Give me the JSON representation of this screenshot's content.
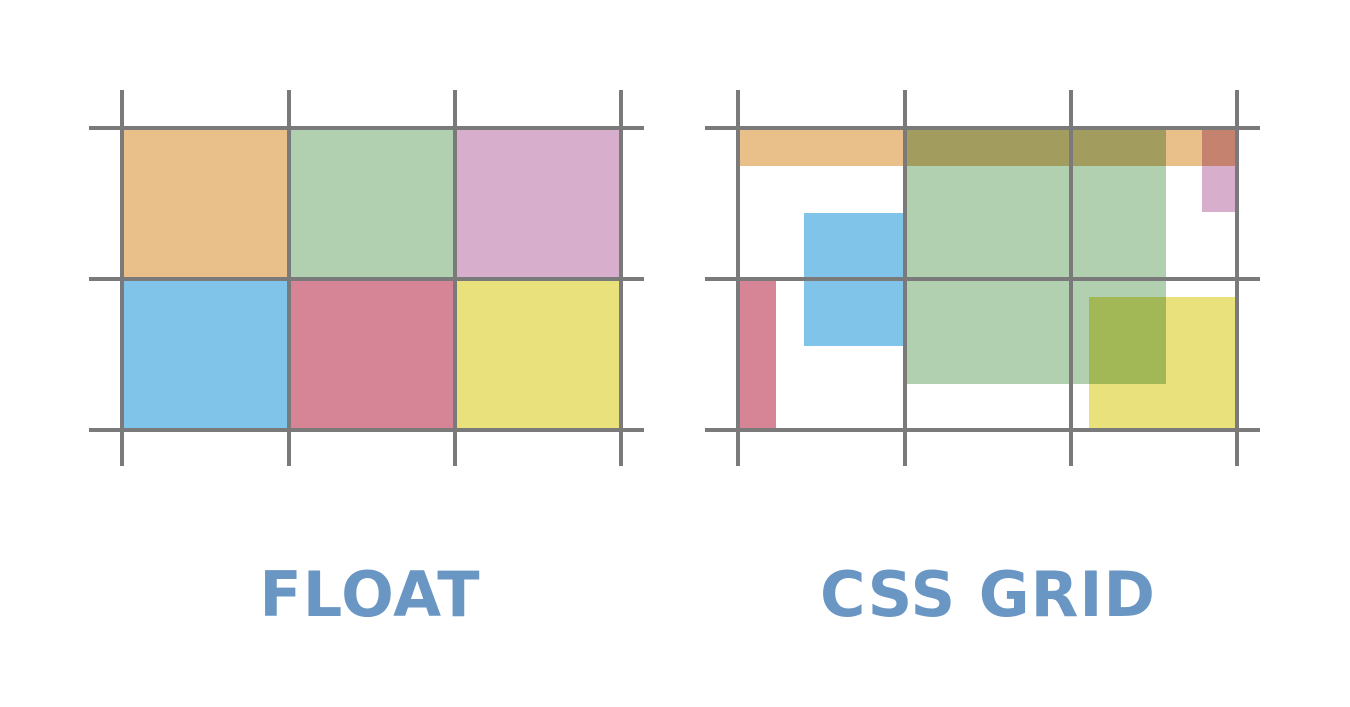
{
  "colors": {
    "orange": "#e9bf8a",
    "green": "#b1d0b0",
    "pink": "#d8aecd",
    "blue": "#80c4e9",
    "red": "#d58595",
    "yellow": "#e9e27c",
    "grid_line": "#7a7a7a",
    "caption": "#6a96c4",
    "background": "#ffffff"
  },
  "diagrams": [
    {
      "id": "float",
      "caption": "FLOAT",
      "columns": 3,
      "rows": 2,
      "cells": [
        {
          "name": "orange-cell",
          "color": "orange",
          "col": 1,
          "row": 1
        },
        {
          "name": "green-cell",
          "color": "green",
          "col": 2,
          "row": 1
        },
        {
          "name": "pink-cell",
          "color": "pink",
          "col": 3,
          "row": 1
        },
        {
          "name": "blue-cell",
          "color": "blue",
          "col": 1,
          "row": 2
        },
        {
          "name": "red-cell",
          "color": "red",
          "col": 2,
          "row": 2
        },
        {
          "name": "yellow-cell",
          "color": "yellow",
          "col": 3,
          "row": 2
        }
      ]
    },
    {
      "id": "css-grid",
      "caption": "CSS GRID",
      "columns": 3,
      "rows": 2,
      "items": [
        "orange",
        "pink",
        "green",
        "blue",
        "red",
        "yellow"
      ]
    }
  ]
}
